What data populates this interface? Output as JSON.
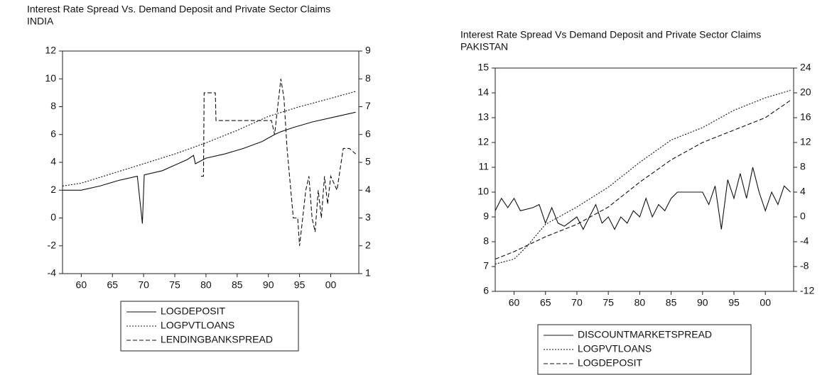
{
  "chart_data": [
    {
      "type": "line",
      "title": "Interest Rate Spread Vs. Demand Deposit and Private Sector Claims",
      "subtitle": "INDIA",
      "xlim": [
        1957,
        2004.5
      ],
      "xticks": [
        {
          "value": 1960,
          "label": "60"
        },
        {
          "value": 1965,
          "label": "65"
        },
        {
          "value": 1970,
          "label": "70"
        },
        {
          "value": 1975,
          "label": "75"
        },
        {
          "value": 1980,
          "label": "80"
        },
        {
          "value": 1985,
          "label": "85"
        },
        {
          "value": 1990,
          "label": "90"
        },
        {
          "value": 1995,
          "label": "95"
        },
        {
          "value": 2000,
          "label": "00"
        }
      ],
      "ylim": [
        -4,
        12
      ],
      "yticks": [
        -4,
        -2,
        0,
        2,
        4,
        6,
        8,
        10,
        12
      ],
      "y2lim": [
        1,
        9
      ],
      "y2ticks": [
        1,
        2,
        3,
        4,
        5,
        6,
        7,
        8,
        9
      ],
      "series": [
        {
          "name": "LOGDEPOSIT",
          "color": "#111111",
          "dash": "solid",
          "x": [
            1957,
            1960,
            1963,
            1966,
            1969,
            1969.8,
            1970.1,
            1973,
            1977,
            1978,
            1978.3,
            1980,
            1983,
            1986,
            1989,
            1991,
            1992,
            1994,
            1997,
            2000,
            2004
          ],
          "values": [
            2.0,
            2.0,
            2.3,
            2.7,
            3.0,
            -0.4,
            3.1,
            3.4,
            4.2,
            4.5,
            3.9,
            4.3,
            4.6,
            5.0,
            5.5,
            6.0,
            6.2,
            6.5,
            6.9,
            7.2,
            7.6
          ]
        },
        {
          "name": "LOGPVTLOANS",
          "color": "#111111",
          "dash": "dotted",
          "x": [
            1957,
            1960,
            1965,
            1970,
            1975,
            1980,
            1985,
            1990,
            1995,
            2000,
            2004
          ],
          "values": [
            2.3,
            2.5,
            3.2,
            3.9,
            4.6,
            5.4,
            6.3,
            7.3,
            8.0,
            8.6,
            9.1
          ]
        },
        {
          "name": "LENDINGBANKSPREAD",
          "color": "#111111",
          "dash": "dashed",
          "axis": "y2",
          "x": [
            1979.2,
            1979.6,
            1979.7,
            1981.5,
            1981.6,
            1990.5,
            1991,
            1991.5,
            1992,
            1992.5,
            1993,
            1994,
            1994.7,
            1995,
            1996,
            1996.5,
            1997,
            1997.5,
            1998,
            1998.5,
            1999,
            1999.5,
            2000,
            2001,
            2002,
            2003,
            2004
          ],
          "values": [
            4.5,
            4.5,
            7.5,
            7.5,
            6.5,
            6.5,
            6.0,
            7.0,
            8.0,
            7.3,
            5.5,
            3.0,
            3.0,
            2.0,
            4.0,
            4.5,
            3.0,
            2.5,
            4.0,
            3.0,
            4.5,
            3.5,
            4.5,
            4.0,
            5.5,
            5.5,
            5.3
          ]
        }
      ]
    },
    {
      "type": "line",
      "title": "Interest Rate Spread Vs Demand Deposit and Private Sector Claims",
      "subtitle": "PAKISTAN",
      "xlim": [
        1957,
        2004.5
      ],
      "xticks": [
        {
          "value": 1960,
          "label": "60"
        },
        {
          "value": 1965,
          "label": "65"
        },
        {
          "value": 1970,
          "label": "70"
        },
        {
          "value": 1975,
          "label": "75"
        },
        {
          "value": 1980,
          "label": "80"
        },
        {
          "value": 1985,
          "label": "85"
        },
        {
          "value": 1990,
          "label": "90"
        },
        {
          "value": 1995,
          "label": "95"
        },
        {
          "value": 2000,
          "label": "00"
        }
      ],
      "ylim": [
        6,
        15
      ],
      "yticks": [
        6,
        7,
        8,
        9,
        10,
        11,
        12,
        13,
        14,
        15
      ],
      "y2lim": [
        -12,
        24
      ],
      "y2ticks": [
        -12,
        -8,
        -4,
        0,
        4,
        8,
        12,
        16,
        20,
        24
      ],
      "series": [
        {
          "name": "DISCOUNTMARKETSPREAD",
          "color": "#111111",
          "dash": "solid",
          "axis": "y2",
          "x": [
            1957,
            1958,
            1959,
            1960,
            1961,
            1963,
            1964,
            1965,
            1966,
            1967,
            1968,
            1970,
            1971,
            1972,
            1973,
            1974,
            1975,
            1976,
            1977,
            1978,
            1979,
            1980,
            1981,
            1982,
            1983,
            1984,
            1985,
            1986,
            1990,
            1991,
            1992,
            1993,
            1994,
            1995,
            1996,
            1997,
            1998,
            1999,
            2000,
            2001,
            2002,
            2003,
            2004
          ],
          "values": [
            1.0,
            3.0,
            1.5,
            3.0,
            1.0,
            1.5,
            2.0,
            -1.0,
            1.5,
            -1.0,
            -1.5,
            0,
            -2,
            0,
            2,
            -1,
            0,
            -2,
            0,
            -1,
            1,
            0,
            3,
            0,
            2,
            1,
            3,
            4,
            4,
            2,
            5,
            -2,
            6,
            3,
            7,
            3,
            8,
            4,
            1,
            4,
            2,
            5,
            4
          ]
        },
        {
          "name": "LOGPVTLOANS",
          "color": "#111111",
          "dash": "dotted",
          "x": [
            1957,
            1960,
            1962,
            1965,
            1970,
            1975,
            1980,
            1985,
            1990,
            1995,
            2000,
            2004
          ],
          "values": [
            7.1,
            7.3,
            7.8,
            8.7,
            9.4,
            10.2,
            11.2,
            12.1,
            12.6,
            13.3,
            13.8,
            14.1
          ]
        },
        {
          "name": "LOGDEPOSIT",
          "color": "#111111",
          "dash": "dashed",
          "x": [
            1957,
            1960,
            1965,
            1970,
            1975,
            1980,
            1985,
            1990,
            1995,
            2000,
            2004
          ],
          "values": [
            7.3,
            7.6,
            8.2,
            8.7,
            9.4,
            10.4,
            11.3,
            12.0,
            12.5,
            13.0,
            13.7
          ]
        }
      ]
    }
  ]
}
